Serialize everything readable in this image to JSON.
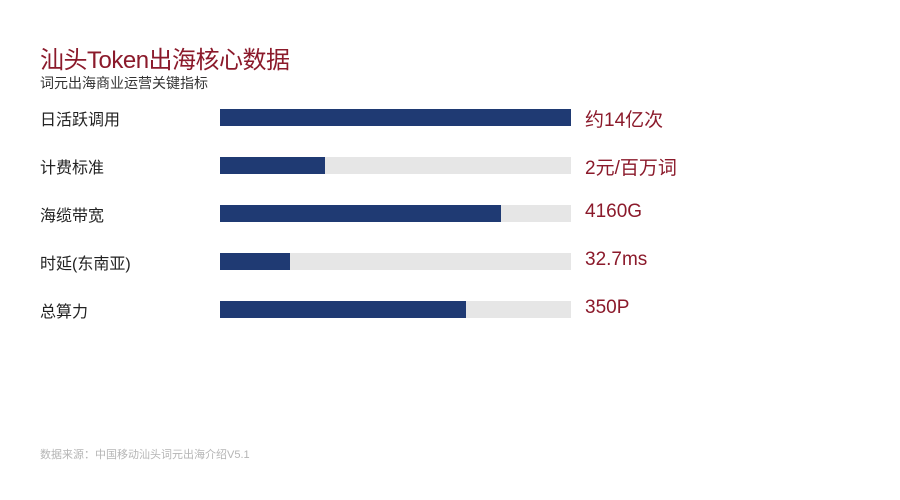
{
  "title": "汕头Token出海核心数据",
  "subtitle": "词元出海商业运营关键指标",
  "source": "数据来源：中国移动汕头词元出海介绍V5.1",
  "colors": {
    "bar": "#1f3a73",
    "track": "#e6e6e6",
    "accent": "#8b1a2b"
  },
  "chart_data": {
    "type": "bar",
    "orientation": "horizontal",
    "categories": [
      "日活跃调用",
      "计费标准",
      "海缆带宽",
      "时延(东南亚)",
      "总算力"
    ],
    "value_labels": [
      "约14亿次",
      "2元/百万词",
      "4160G",
      "32.7ms",
      "350P"
    ],
    "fill_fraction": [
      1.0,
      0.3,
      0.8,
      0.2,
      0.7
    ],
    "title": "汕头Token出海核心数据",
    "subtitle": "词元出海商业运营关键指标",
    "grid": false,
    "legend": "none"
  }
}
